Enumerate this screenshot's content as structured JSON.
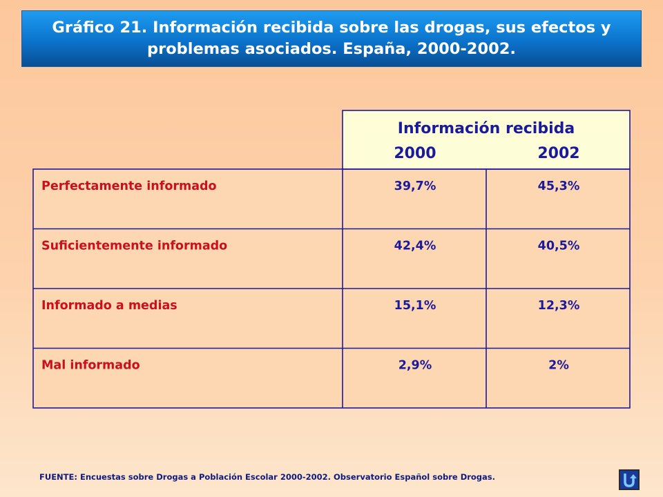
{
  "title": "Gráfico 21. Información recibida sobre las drogas, sus efectos y\nproblemas asociados. España, 2000-2002.",
  "colors": {
    "header_fill": "#fdfdd8",
    "border": "#1a1a9a",
    "row_label": "#c8101e",
    "value_text": "#1a1a9a",
    "banner": "#0b73cc"
  },
  "chart_data": {
    "type": "table",
    "column_group_header": "Información recibida",
    "columns": [
      "2000",
      "2002"
    ],
    "rows": [
      {
        "label": "Perfectamente informado",
        "values": [
          "39,7%",
          "45,3%"
        ]
      },
      {
        "label": "Suficientemente informado",
        "values": [
          "42,4%",
          "40,5%"
        ]
      },
      {
        "label": "Informado a medias",
        "values": [
          "15,1%",
          "12,3%"
        ]
      },
      {
        "label": "Mal informado",
        "values": [
          "2,9%",
          "2%"
        ]
      }
    ],
    "numeric_values": {
      "2000": [
        39.7,
        42.4,
        15.1,
        2.9
      ],
      "2002": [
        45.3,
        40.5,
        12.3,
        2
      ]
    }
  },
  "footer": "FUENTE: Encuestas sobre Drogas a Población Escolar 2000-2002.  Observatorio Español sobre Drogas.",
  "nav": {
    "icon": "u-turn-return-icon"
  }
}
